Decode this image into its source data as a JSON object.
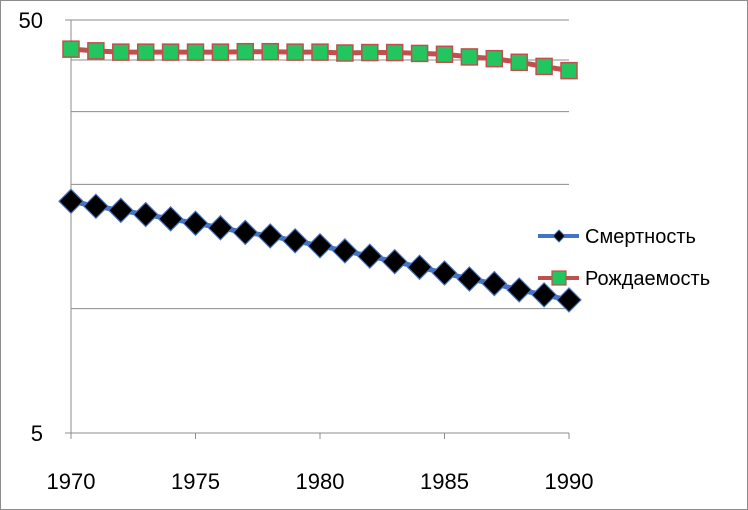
{
  "chart_data": {
    "type": "line",
    "title": "",
    "xlabel": "",
    "ylabel": "",
    "y_scale": "log",
    "ylim": [
      5,
      50
    ],
    "xlim": [
      1970,
      1990
    ],
    "x_tick_labels": [
      "1970",
      "1975",
      "1980",
      "1985",
      "1990"
    ],
    "y_tick_labels": [
      "5",
      "50"
    ],
    "grid": true,
    "legend_position": "right",
    "x": [
      1970,
      1971,
      1972,
      1973,
      1974,
      1975,
      1976,
      1977,
      1978,
      1979,
      1980,
      1981,
      1982,
      1983,
      1984,
      1985,
      1986,
      1987,
      1988,
      1989,
      1990
    ],
    "series": [
      {
        "name": "Смертность",
        "line_color": "#4472C4",
        "marker": "diamond",
        "marker_color": "#000000",
        "values": [
          18.2,
          17.7,
          17.3,
          16.9,
          16.5,
          16.1,
          15.7,
          15.3,
          15.0,
          14.6,
          14.2,
          13.8,
          13.4,
          13.0,
          12.6,
          12.2,
          11.8,
          11.5,
          11.1,
          10.8,
          10.5
        ]
      },
      {
        "name": "Рождаемость",
        "line_color": "#C0504D",
        "marker": "square",
        "marker_color": "#22C55E",
        "values": [
          42.5,
          42.1,
          41.8,
          41.8,
          41.8,
          41.8,
          41.8,
          41.9,
          41.9,
          41.8,
          41.8,
          41.6,
          41.7,
          41.7,
          41.5,
          41.3,
          40.7,
          40.3,
          39.5,
          38.6,
          37.7
        ]
      }
    ]
  }
}
